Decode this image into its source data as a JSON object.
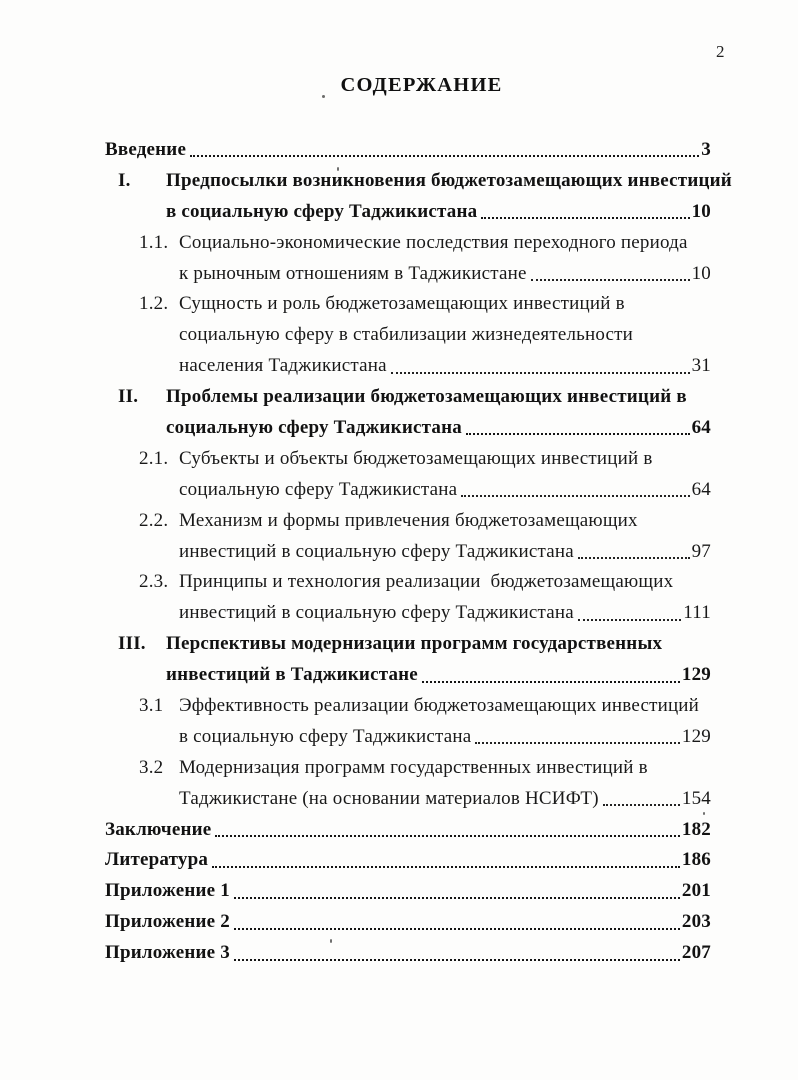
{
  "page": {
    "number": "2",
    "title": "СОДЕРЖАНИЕ"
  },
  "toc": {
    "entries": [
      {
        "num": "",
        "level": "root",
        "bold": true,
        "lines": [
          "Введение"
        ],
        "page": "3"
      },
      {
        "num": "I.",
        "level": "roman",
        "bold": true,
        "lines": [
          "Предпосылки возникновения бюджетозамещающих инвестиций",
          "в социальную сферу Таджикистана"
        ],
        "page": "10"
      },
      {
        "num": "1.1.",
        "level": "sub",
        "bold": false,
        "lines": [
          "Социально-экономические последствия переходного периода",
          "к рыночным отношениям в Таджикистане"
        ],
        "page": "10"
      },
      {
        "num": "1.2.",
        "level": "sub",
        "bold": false,
        "lines": [
          "Сущность и роль бюджетозамещающих инвестиций в",
          "социальную сферу в стабилизации жизнедеятельности",
          "населения Таджикистана"
        ],
        "page": "31"
      },
      {
        "num": "II.",
        "level": "roman",
        "bold": true,
        "lines": [
          "Проблемы реализации бюджетозамещающих инвестиций в",
          "социальную сферу Таджикистана"
        ],
        "page": "64"
      },
      {
        "num": "2.1.",
        "level": "sub",
        "bold": false,
        "lines": [
          "Субъекты и объекты бюджетозамещающих инвестиций в",
          "социальную сферу Таджикистана"
        ],
        "page": "64"
      },
      {
        "num": "2.2.",
        "level": "sub",
        "bold": false,
        "lines": [
          "Механизм и формы привлечения бюджетозамещающих",
          "инвестиций в социальную сферу Таджикистана"
        ],
        "page": "97"
      },
      {
        "num": "2.3.",
        "level": "sub",
        "bold": false,
        "lines": [
          "Принципы и технология реализации  бюджетозамещающих",
          "инвестиций в социальную сферу Таджикистана"
        ],
        "page": "111"
      },
      {
        "num": "III.",
        "level": "roman",
        "bold": true,
        "lines": [
          "Перспективы модернизации программ государственных",
          "инвестиций в Таджикистане"
        ],
        "page": "129"
      },
      {
        "num": "3.1",
        "level": "sub",
        "bold": false,
        "lines": [
          "Эффективность реализации бюджетозамещающих инвестиций",
          "в социальную сферу Таджикистана"
        ],
        "page": "129"
      },
      {
        "num": "3.2",
        "level": "sub",
        "bold": false,
        "lines": [
          "Модернизация программ государственных инвестиций в",
          "Таджикистане (на основании материалов НСИФТ)"
        ],
        "page": "154"
      },
      {
        "num": "",
        "level": "root",
        "bold": true,
        "lines": [
          "Заключение"
        ],
        "page": "182"
      },
      {
        "num": "",
        "level": "root",
        "bold": true,
        "lines": [
          "Литература"
        ],
        "page": "186"
      },
      {
        "num": "",
        "level": "root",
        "bold": true,
        "lines": [
          "Приложение 1"
        ],
        "page": "201"
      },
      {
        "num": "",
        "level": "root",
        "bold": true,
        "lines": [
          "Приложение 2"
        ],
        "page": "203"
      },
      {
        "num": "",
        "level": "root",
        "bold": true,
        "lines": [
          "Приложение 3"
        ],
        "page": "207"
      }
    ]
  }
}
